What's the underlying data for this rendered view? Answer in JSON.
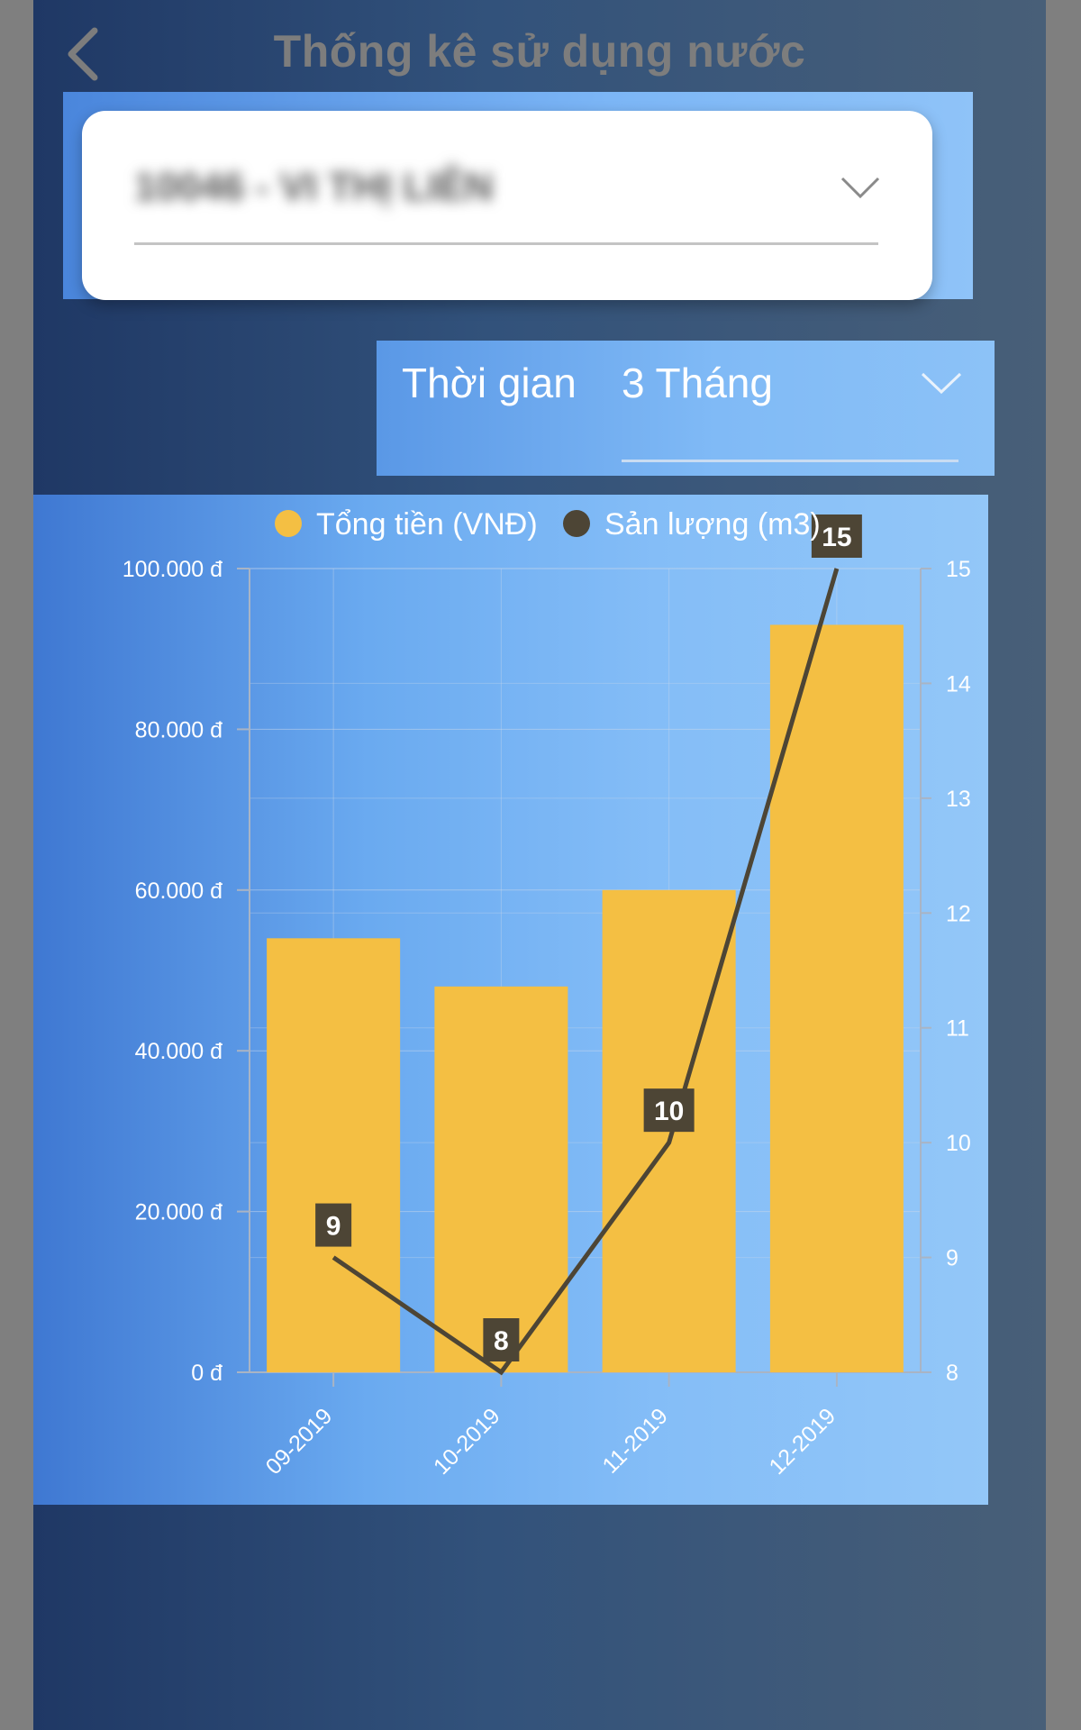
{
  "header": {
    "title": "Thống kê sử dụng nước",
    "back_icon": "chevron-left-icon"
  },
  "account": {
    "value": "10046 - VI THỊ LIÊN",
    "dropdown_icon": "chevron-down-icon"
  },
  "time_filter": {
    "label": "Thời gian",
    "value": "3 Tháng",
    "dropdown_icon": "chevron-down-icon"
  },
  "colors": {
    "bar": "#f4bf43",
    "line": "#4d4535",
    "label_box": "#4d4535",
    "text_muted": "#7d7d7d"
  },
  "chart_data": {
    "type": "bar",
    "categories": [
      "09-2019",
      "10-2019",
      "11-2019",
      "12-2019"
    ],
    "series": [
      {
        "name": "Tổng tiền (VNĐ)",
        "type": "bar",
        "axis": "left",
        "values": [
          54000,
          48000,
          60000,
          93000
        ]
      },
      {
        "name": "Sản lượng (m3)",
        "type": "line",
        "axis": "right",
        "values": [
          9,
          8,
          10,
          15
        ]
      }
    ],
    "y_left": {
      "min": 0,
      "max": 100000,
      "ticks": [
        "0 đ",
        "20.000 đ",
        "40.000 đ",
        "60.000 đ",
        "80.000 đ",
        "100.000 đ"
      ]
    },
    "y_right": {
      "min": 8,
      "max": 15,
      "ticks": [
        "8",
        "9",
        "10",
        "11",
        "12",
        "13",
        "14",
        "15"
      ]
    },
    "data_labels": [
      "9",
      "8",
      "10",
      "15"
    ],
    "legend": "top-center",
    "grid": true
  }
}
